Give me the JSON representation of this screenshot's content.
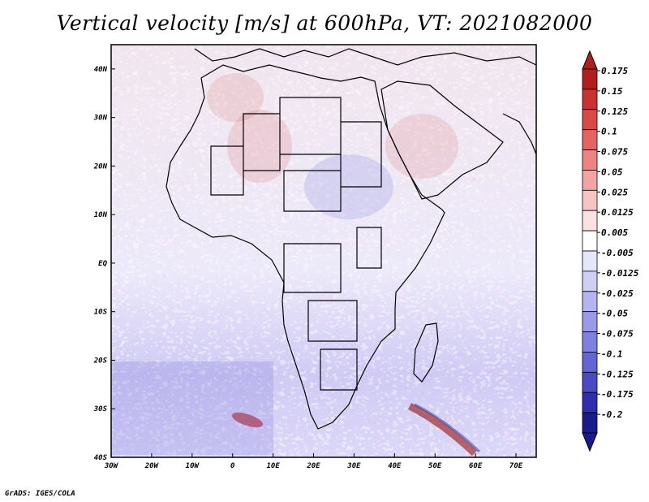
{
  "title": "Vertical velocity [m/s] at 600hPa, VT: 2021082000",
  "credit": "GrADS: IGES/COLA",
  "map": {
    "region": "Africa",
    "field": "vertical velocity",
    "level": "600hPa",
    "lon_range": [
      -30,
      75
    ],
    "lat_range": [
      -40,
      45
    ],
    "lon_ticks": [
      "30W",
      "20W",
      "10W",
      "0",
      "10E",
      "20E",
      "30E",
      "40E",
      "50E",
      "60E",
      "70E"
    ],
    "lat_ticks": [
      "40N",
      "30N",
      "20N",
      "10N",
      "EQ",
      "10S",
      "20S",
      "30S",
      "40S"
    ]
  },
  "colorbar": {
    "labels": [
      "0.175",
      "0.15",
      "0.125",
      "0.1",
      "0.075",
      "0.05",
      "0.025",
      "0.0125",
      "0.005",
      "-0.005",
      "-0.0125",
      "-0.025",
      "-0.05",
      "-0.075",
      "-0.1",
      "-0.125",
      "-0.175",
      "-0.2"
    ],
    "colors": [
      "#b21e1e",
      "#c83232",
      "#d84a4a",
      "#e46464",
      "#ec8484",
      "#f2a4a4",
      "#f7c4c4",
      "#fbe2e2",
      "#ffffff",
      "#e6e6fa",
      "#cfcff6",
      "#b4b4f0",
      "#9a9ae8",
      "#8080de",
      "#6464d2",
      "#4a4ac2",
      "#2e2eb0",
      "#1a1a8c"
    ]
  }
}
